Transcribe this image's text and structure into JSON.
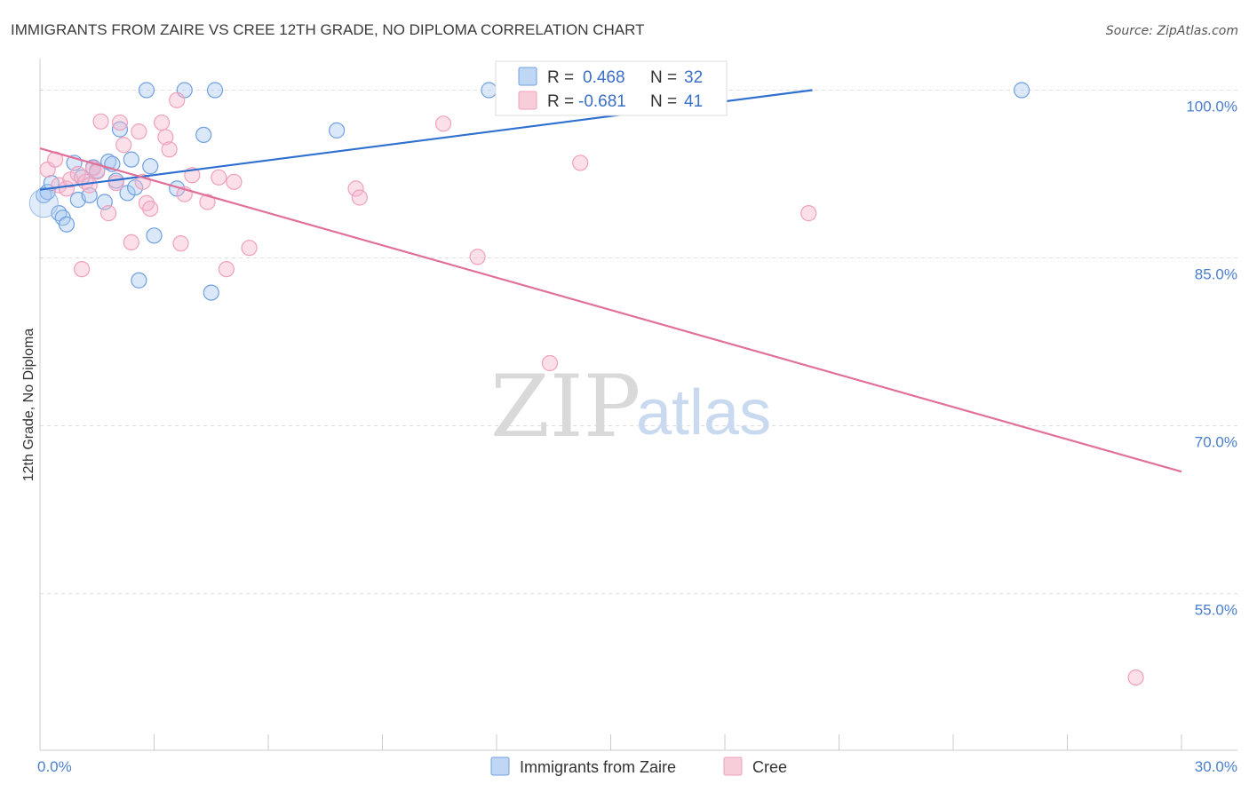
{
  "chart_data": {
    "type": "scatter",
    "title": "IMMIGRANTS FROM ZAIRE VS CREE 12TH GRADE, NO DIPLOMA CORRELATION CHART",
    "source": "Source: ZipAtlas.com",
    "xlabel": "",
    "ylabel": "12th Grade, No Diploma",
    "xlim": [
      0,
      30
    ],
    "ylim": [
      41,
      102.5
    ],
    "x_tick_labels": [
      "0.0%",
      "30.0%"
    ],
    "y_ticks": [
      100,
      85,
      70,
      55
    ],
    "y_tick_labels": [
      "100.0%",
      "85.0%",
      "70.0%",
      "55.0%"
    ],
    "grid": true,
    "watermark": {
      "zip": "ZIP",
      "atlas": "atlas"
    },
    "legend_position": "top-center",
    "series": [
      {
        "name": "Immigrants from Zaire",
        "color": "#6fa0e0",
        "line_color": "#2f6fcf",
        "R": "0.468",
        "N": "32",
        "trend": [
          [
            0,
            91.1
          ],
          [
            20.3,
            100
          ]
        ],
        "points": [
          [
            0.1,
            90.6
          ],
          [
            0.2,
            90.9
          ],
          [
            0.3,
            91.7
          ],
          [
            0.5,
            89.0
          ],
          [
            0.6,
            88.6
          ],
          [
            0.7,
            88.0
          ],
          [
            0.9,
            93.5
          ],
          [
            1.0,
            90.2
          ],
          [
            1.1,
            92.2
          ],
          [
            1.3,
            90.6
          ],
          [
            1.4,
            93.1
          ],
          [
            1.5,
            92.8
          ],
          [
            1.7,
            90.0
          ],
          [
            1.8,
            93.6
          ],
          [
            1.9,
            93.4
          ],
          [
            2.0,
            91.9
          ],
          [
            2.1,
            96.5
          ],
          [
            2.3,
            90.8
          ],
          [
            2.4,
            93.8
          ],
          [
            2.5,
            91.3
          ],
          [
            2.6,
            83.0
          ],
          [
            2.8,
            100.0
          ],
          [
            2.9,
            93.2
          ],
          [
            3.0,
            87.0
          ],
          [
            3.6,
            91.2
          ],
          [
            3.8,
            100.0
          ],
          [
            4.3,
            96.0
          ],
          [
            4.5,
            81.9
          ],
          [
            4.6,
            100.0
          ],
          [
            7.8,
            96.4
          ],
          [
            11.8,
            100.0
          ],
          [
            25.8,
            100.0
          ]
        ]
      },
      {
        "name": "Cree",
        "color": "#f0a0bc",
        "line_color": "#e0709a",
        "R": "-0.681",
        "N": "41",
        "trend": [
          [
            0,
            94.8
          ],
          [
            30,
            65.9
          ]
        ],
        "points": [
          [
            0.2,
            92.9
          ],
          [
            0.4,
            93.8
          ],
          [
            0.5,
            91.5
          ],
          [
            0.7,
            91.2
          ],
          [
            0.8,
            92.0
          ],
          [
            1.0,
            92.5
          ],
          [
            1.1,
            84.0
          ],
          [
            1.2,
            91.8
          ],
          [
            1.3,
            91.5
          ],
          [
            1.4,
            93.0
          ],
          [
            1.5,
            92.7
          ],
          [
            1.6,
            97.2
          ],
          [
            1.8,
            89.0
          ],
          [
            2.0,
            91.7
          ],
          [
            2.1,
            97.1
          ],
          [
            2.2,
            95.1
          ],
          [
            2.4,
            86.4
          ],
          [
            2.6,
            96.3
          ],
          [
            2.7,
            91.8
          ],
          [
            2.8,
            89.9
          ],
          [
            2.9,
            89.4
          ],
          [
            3.2,
            97.1
          ],
          [
            3.3,
            95.8
          ],
          [
            3.4,
            94.7
          ],
          [
            3.6,
            99.1
          ],
          [
            3.7,
            86.3
          ],
          [
            3.8,
            90.7
          ],
          [
            4.0,
            92.4
          ],
          [
            4.4,
            90.0
          ],
          [
            4.7,
            92.2
          ],
          [
            4.9,
            84.0
          ],
          [
            5.1,
            91.8
          ],
          [
            5.5,
            85.9
          ],
          [
            8.3,
            91.2
          ],
          [
            8.4,
            90.4
          ],
          [
            10.6,
            97.0
          ],
          [
            11.5,
            85.1
          ],
          [
            13.4,
            75.6
          ],
          [
            14.2,
            93.5
          ],
          [
            20.2,
            89.0
          ],
          [
            28.8,
            47.5
          ]
        ]
      }
    ]
  }
}
